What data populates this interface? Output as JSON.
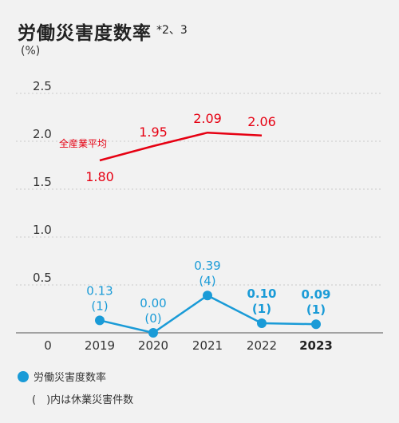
{
  "title": "労働災害度数率",
  "title_note": "*2、3",
  "unit": "(%)",
  "legend": {
    "rate_label": "労働災害度数率",
    "note": "(　)内は休業災害件数"
  },
  "chart_data": {
    "type": "line",
    "x": [
      "2019",
      "2020",
      "2021",
      "2022",
      "2023"
    ],
    "x_bold": [
      "2023"
    ],
    "ylim": [
      0,
      2.5
    ],
    "yticks": [
      "0",
      "0.5",
      "1.0",
      "1.5",
      "2.0",
      "2.5"
    ],
    "grid": true,
    "series": [
      {
        "name": "全産業平均",
        "color": "#e60012",
        "x": [
          "2019",
          "2020",
          "2021",
          "2022"
        ],
        "values": [
          1.8,
          1.95,
          2.09,
          2.06
        ],
        "labels": [
          "1.80",
          "1.95",
          "2.09",
          "2.06"
        ]
      },
      {
        "name": "労働災害度数率",
        "color": "#1a9bd7",
        "x": [
          "2019",
          "2020",
          "2021",
          "2022",
          "2023"
        ],
        "values": [
          0.13,
          0.0,
          0.39,
          0.1,
          0.09
        ],
        "labels": [
          "0.13",
          "0.00",
          "0.39",
          "0.10",
          "0.09"
        ],
        "counts": [
          "(1)",
          "(0)",
          "(4)",
          "(1)",
          "(1)"
        ],
        "bold": [
          false,
          false,
          false,
          true,
          true
        ]
      }
    ]
  }
}
